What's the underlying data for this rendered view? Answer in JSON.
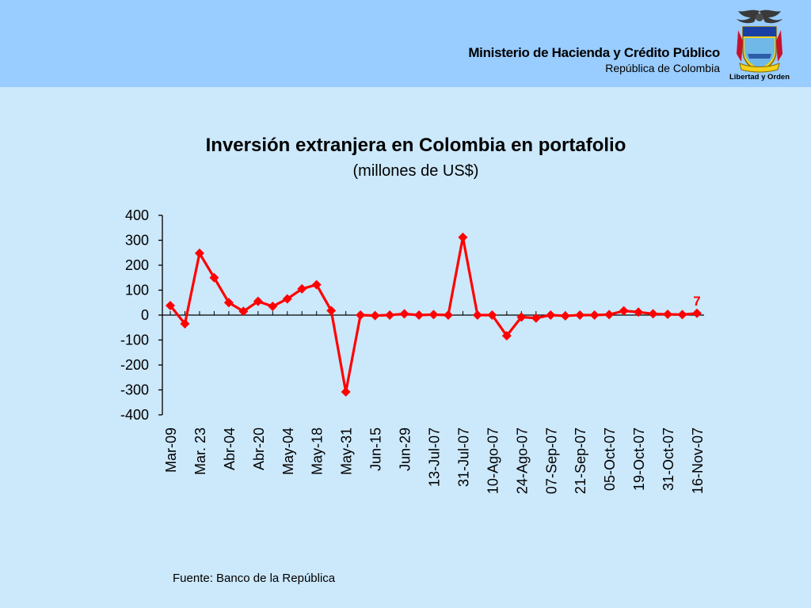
{
  "header": {
    "ministry": "Ministerio de Hacienda y Crédito Público",
    "country": "República de Colombia",
    "motto": "Libertad y Orden"
  },
  "colors": {
    "header_bg": "#99ccff",
    "page_bg": "#cce8fb",
    "series": "#ff0000"
  },
  "chart_data": {
    "type": "line",
    "title": "Inversión extranjera en Colombia en portafolio",
    "subtitle": "(millones de US$)",
    "ylim": [
      -400,
      400
    ],
    "y_ticks": [
      "400",
      "300",
      "200",
      "100",
      "0",
      "-100",
      "-200",
      "-300",
      "-400"
    ],
    "categories": [
      "Mar-09",
      "",
      "Mar. 23",
      "",
      "Abr-04",
      "",
      "Abr-20",
      "",
      "May-04",
      "",
      "May-18",
      "",
      "May-31",
      "",
      "Jun-15",
      "",
      "Jun-29",
      "",
      "13-Jul-07",
      "",
      "31-Jul-07",
      "",
      "10-Ago-07",
      "",
      "24-Ago-07",
      "",
      "07-Sep-07",
      "",
      "21-Sep-07",
      "",
      "05-Oct-07",
      "",
      "19-Oct-07",
      "",
      "31-Oct-07",
      "",
      "16-Nov-07"
    ],
    "values": [
      38,
      -35,
      248,
      150,
      50,
      15,
      55,
      35,
      65,
      105,
      122,
      18,
      -308,
      0,
      -2,
      0,
      5,
      0,
      2,
      0,
      312,
      0,
      0,
      -83,
      -8,
      -12,
      0,
      -3,
      0,
      0,
      2,
      17,
      12,
      5,
      3,
      2,
      7
    ],
    "data_label": "7",
    "legend": "none"
  },
  "footer": {
    "source": "Fuente: Banco de la República"
  }
}
